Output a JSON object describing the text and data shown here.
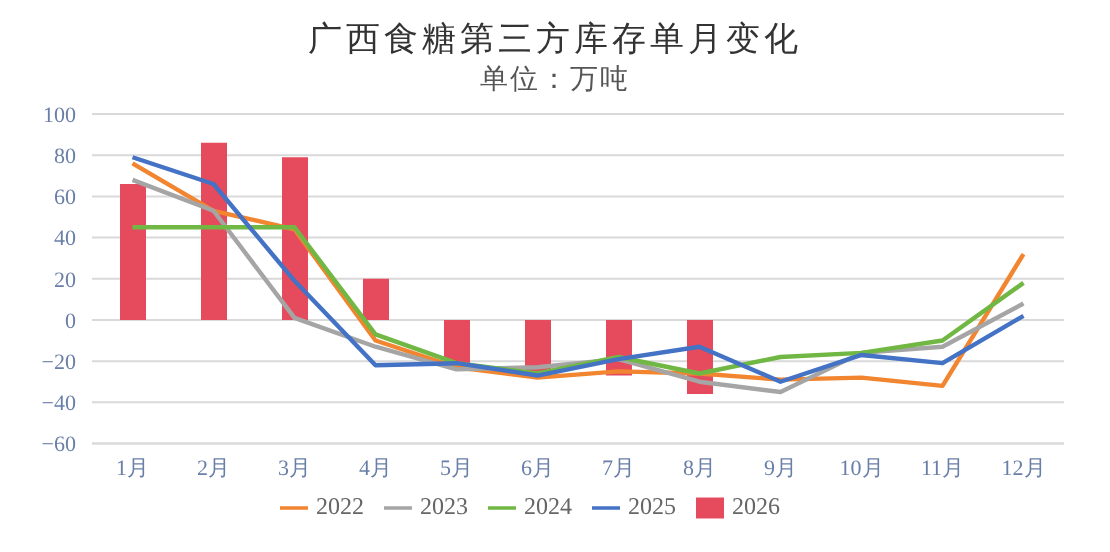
{
  "chart_data": {
    "type": "line",
    "title": "广西食糖第三方库存单月变化",
    "subtitle": "单位：万吨",
    "categories": [
      "1月",
      "2月",
      "3月",
      "4月",
      "5月",
      "6月",
      "7月",
      "8月",
      "9月",
      "10月",
      "11月",
      "12月"
    ],
    "series": [
      {
        "name": "2026",
        "type": "bar",
        "color": "#e54b5d",
        "values": [
          66,
          86,
          79,
          20,
          -22,
          -27,
          -27,
          -36,
          null,
          null,
          null,
          null
        ]
      },
      {
        "name": "2022",
        "color": "#f28530",
        "values": [
          76,
          53,
          44,
          -10,
          -23,
          -28,
          -25,
          -26,
          -29,
          -28,
          -32,
          32
        ]
      },
      {
        "name": "2023",
        "color": "#a5a5a5",
        "values": [
          68,
          53,
          1,
          -13,
          -24,
          -23,
          -19,
          -30,
          -35,
          -16,
          -13,
          8
        ]
      },
      {
        "name": "2024",
        "color": "#70b843",
        "values": [
          45,
          45,
          45,
          -7,
          -21,
          -26,
          -18,
          -26,
          -18,
          -16,
          -10,
          18
        ]
      },
      {
        "name": "2025",
        "color": "#4472c4",
        "values": [
          79,
          66,
          19,
          -22,
          -21,
          -27,
          -19,
          -13,
          -30,
          -17,
          -21,
          2
        ]
      }
    ],
    "ylim": [
      -60,
      100
    ],
    "yticks": [
      -60,
      -40,
      -20,
      0,
      20,
      40,
      60,
      80,
      100
    ],
    "grid": "y",
    "legend": "bottom",
    "marker": "none"
  }
}
